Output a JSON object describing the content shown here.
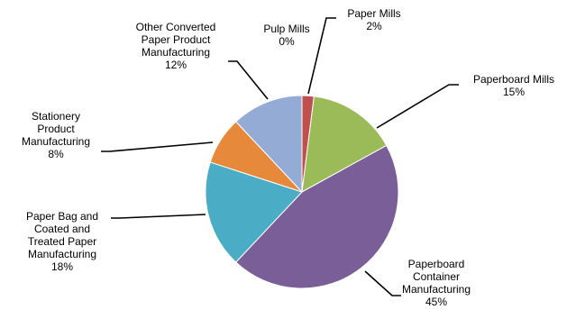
{
  "chart_data": {
    "type": "pie",
    "title": "",
    "slices": [
      {
        "label": "Pulp Mills",
        "value": 0,
        "value_label": "0%",
        "color": "#4F81BD"
      },
      {
        "label": "Paper Mills",
        "value": 2,
        "value_label": "2%",
        "color": "#C0504D"
      },
      {
        "label": "Paperboard Mills",
        "value": 15,
        "value_label": "15%",
        "color": "#9BBB59"
      },
      {
        "label": "Paperboard Container Manufacturing",
        "value": 45,
        "value_label": "45%",
        "color": "#7A5E97"
      },
      {
        "label": "Paper Bag and Coated and Treated Paper Manufacturing",
        "value": 18,
        "value_label": "18%",
        "color": "#4BACC6"
      },
      {
        "label": "Stationery Product Manufacturing",
        "value": 8,
        "value_label": "8%",
        "color": "#E6893A"
      },
      {
        "label": "Other Converted Paper Product Manufacturing",
        "value": 12,
        "value_label": "12%",
        "color": "#94ABD6"
      }
    ]
  }
}
